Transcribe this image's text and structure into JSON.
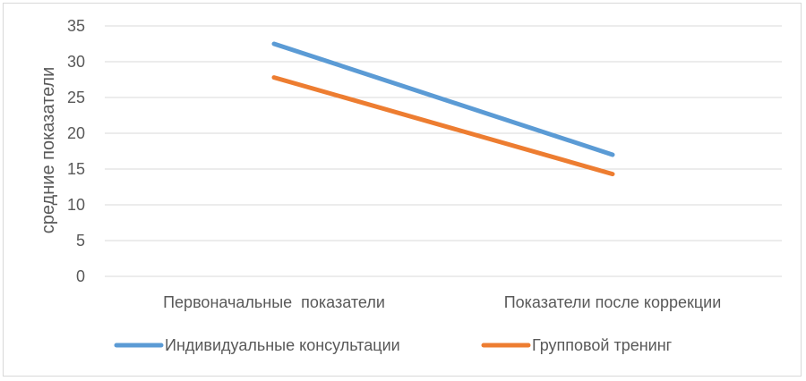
{
  "chart_data": {
    "type": "line",
    "title": "",
    "xlabel": "",
    "ylabel": "средние показатели",
    "categories": [
      "Первоначальные  показатели",
      "Показатели после коррекции"
    ],
    "series": [
      {
        "name": "Индивидуальные консультации",
        "color": "#5b9bd5",
        "values": [
          32.5,
          17.0
        ]
      },
      {
        "name": "Групповой тренинг",
        "color": "#ed7d31",
        "values": [
          27.8,
          14.3
        ]
      }
    ],
    "ylim": [
      0,
      35
    ],
    "yticks": [
      "0",
      "5",
      "10",
      "15",
      "20",
      "25",
      "30",
      "35"
    ],
    "grid": true,
    "legend_position": "bottom"
  }
}
